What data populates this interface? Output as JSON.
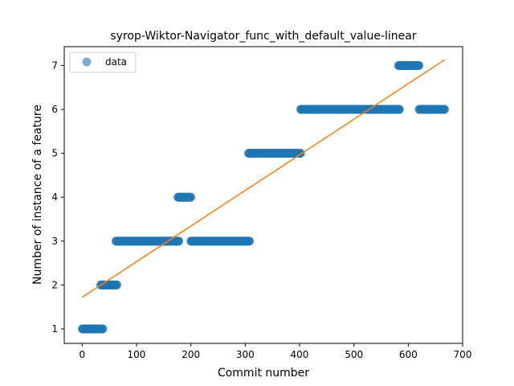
{
  "chart_data": {
    "type": "scatter",
    "title": "syrop-Wiktor-Navigator_func_with_default_value-linear",
    "xlabel": "Commit number",
    "ylabel": "Number of instance of a feature",
    "xlim": [
      -33,
      700
    ],
    "ylim": [
      0.67,
      7.43
    ],
    "xticks": [
      0,
      100,
      200,
      300,
      400,
      500,
      600,
      700
    ],
    "yticks": [
      1,
      2,
      3,
      4,
      5,
      6,
      7
    ],
    "grid": false,
    "legend": {
      "placement": "top-left",
      "entries": [
        "data"
      ]
    },
    "colors": {
      "points": "#1f77b4",
      "fit": "#ff7f0e"
    },
    "segments": [
      {
        "x_start": 0,
        "x_end": 38,
        "y": 1
      },
      {
        "x_start": 34,
        "x_end": 64,
        "y": 2
      },
      {
        "x_start": 62,
        "x_end": 178,
        "y": 3
      },
      {
        "x_start": 176,
        "x_end": 200,
        "y": 4
      },
      {
        "x_start": 200,
        "x_end": 308,
        "y": 3
      },
      {
        "x_start": 306,
        "x_end": 402,
        "y": 5
      },
      {
        "x_start": 402,
        "x_end": 584,
        "y": 6
      },
      {
        "x_start": 582,
        "x_end": 620,
        "y": 7
      },
      {
        "x_start": 620,
        "x_end": 667,
        "y": 6
      }
    ],
    "series": [
      {
        "name": "",
        "type": "line",
        "x": [
          0,
          667
        ],
        "y": [
          1.72,
          7.13
        ]
      }
    ]
  }
}
